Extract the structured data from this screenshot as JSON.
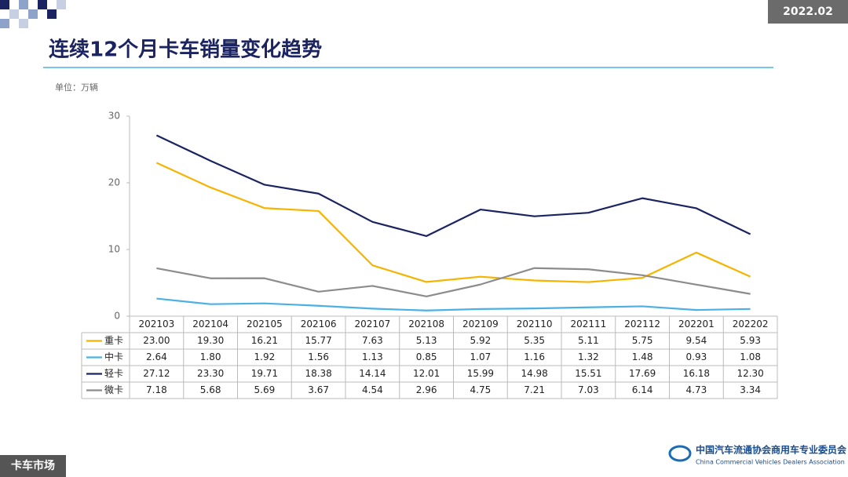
{
  "header": {
    "date": "2022.02"
  },
  "footer": {
    "section": "卡车市场",
    "org_cn": "中国汽车流通协会商用车专业委员会",
    "org_en": "China Commercial Vehicles Dealers Association"
  },
  "chart_data": {
    "type": "line",
    "title": "连续12个月卡车销量变化趋势",
    "y_label": "单位：万辆",
    "categories": [
      "202103",
      "202104",
      "202105",
      "202106",
      "202107",
      "202108",
      "202109",
      "202110",
      "202111",
      "202112",
      "202201",
      "202202"
    ],
    "ylim": [
      0,
      30
    ],
    "yticks": [
      0,
      10,
      20,
      30
    ],
    "grid": false,
    "series": [
      {
        "name": "重卡",
        "color": "#f5b400",
        "values": [
          23.0,
          19.3,
          16.21,
          15.77,
          7.63,
          5.13,
          5.92,
          5.35,
          5.11,
          5.75,
          9.54,
          5.93
        ],
        "value_labels": [
          "23.00",
          "19.30",
          "16.21",
          "15.77",
          "7.63",
          "5.13",
          "5.92",
          "5.35",
          "5.11",
          "5.75",
          "9.54",
          "5.93"
        ]
      },
      {
        "name": "中卡",
        "color": "#4bb0e4",
        "values": [
          2.64,
          1.8,
          1.92,
          1.56,
          1.13,
          0.85,
          1.07,
          1.16,
          1.32,
          1.48,
          0.93,
          1.08
        ],
        "value_labels": [
          "2.64",
          "1.80",
          "1.92",
          "1.56",
          "1.13",
          "0.85",
          "1.07",
          "1.16",
          "1.32",
          "1.48",
          "0.93",
          "1.08"
        ]
      },
      {
        "name": "轻卡",
        "color": "#1b2461",
        "values": [
          27.12,
          23.3,
          19.71,
          18.38,
          14.14,
          12.01,
          15.99,
          14.98,
          15.51,
          17.69,
          16.18,
          12.3
        ],
        "value_labels": [
          "27.12",
          "23.30",
          "19.71",
          "18.38",
          "14.14",
          "12.01",
          "15.99",
          "14.98",
          "15.51",
          "17.69",
          "16.18",
          "12.30"
        ]
      },
      {
        "name": "微卡",
        "color": "#8c8c8c",
        "values": [
          7.18,
          5.68,
          5.69,
          3.67,
          4.54,
          2.96,
          4.75,
          7.21,
          7.03,
          6.14,
          4.73,
          3.34
        ],
        "value_labels": [
          "7.18",
          "5.68",
          "5.69",
          "3.67",
          "4.54",
          "2.96",
          "4.75",
          "7.21",
          "7.03",
          "6.14",
          "4.73",
          "3.34"
        ]
      }
    ]
  }
}
